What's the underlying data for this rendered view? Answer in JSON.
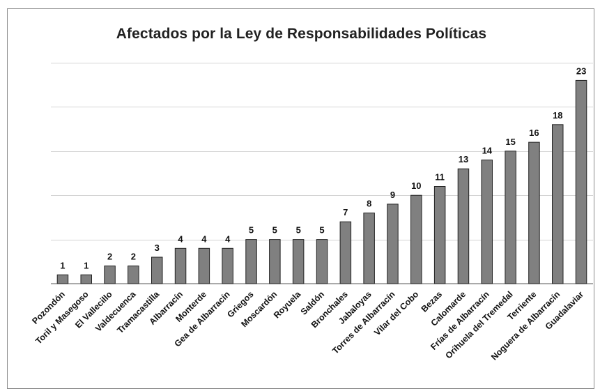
{
  "chart_data": {
    "type": "bar",
    "title": "Afectados por la Ley de Responsabilidades Políticas",
    "xlabel": "",
    "ylabel": "",
    "ylim": [
      0,
      25
    ],
    "grid": true,
    "categories": [
      "Pozondón",
      "Toril y Masegoso",
      "El Vallecillo",
      "Valdecuenca",
      "Tramacastilla",
      "Albarracín",
      "Monterde",
      "Gea de Albarracín",
      "Griegos",
      "Moscardón",
      "Royuela",
      "Saldón",
      "Bronchales",
      "Jabaloyas",
      "Torres de Albarracín",
      "Vilar del Cobo",
      "Bezas",
      "Calomarde",
      "Frías de Albarracín",
      "Orihuela del Tremedal",
      "Terriente",
      "Noguera de Albarracín",
      "Guadalaviar"
    ],
    "values": [
      1,
      1,
      2,
      2,
      3,
      4,
      4,
      4,
      5,
      5,
      5,
      5,
      7,
      8,
      9,
      10,
      11,
      13,
      14,
      15,
      16,
      18,
      23
    ],
    "bar_color": "#808080"
  }
}
